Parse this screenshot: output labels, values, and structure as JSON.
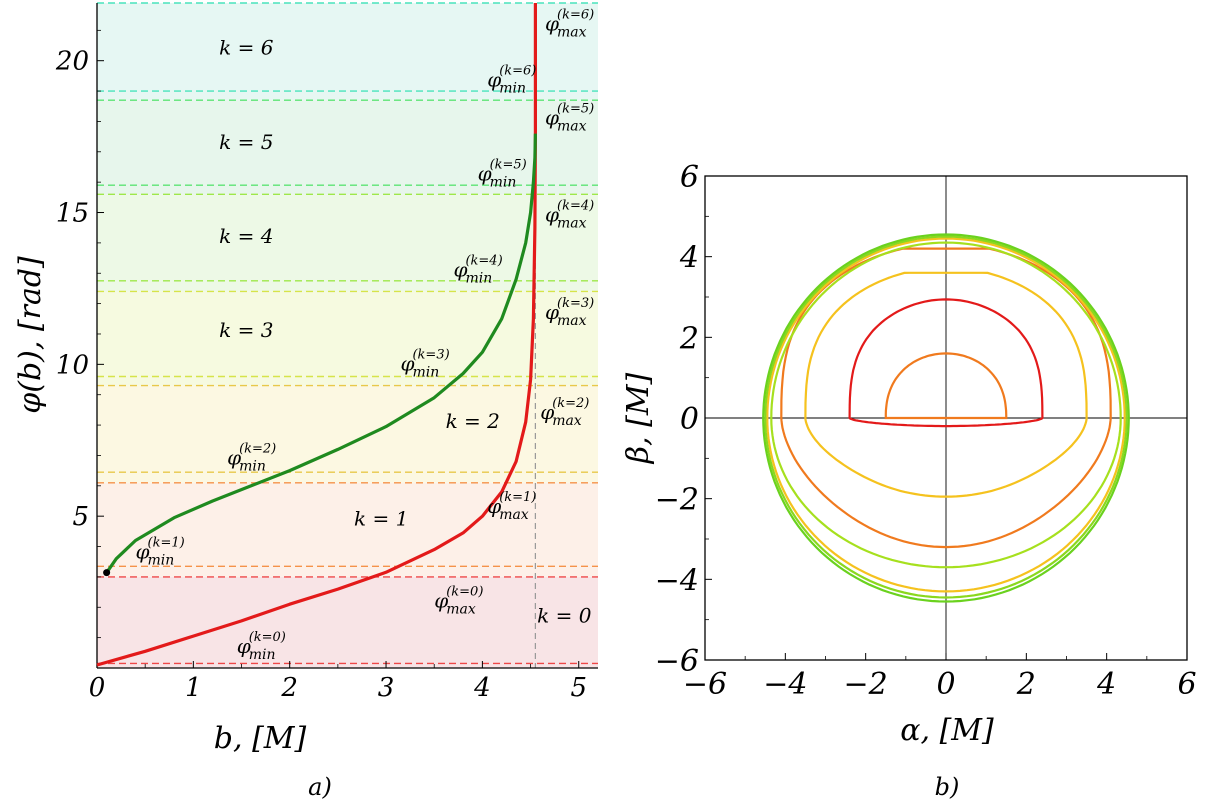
{
  "chart_data": [
    {
      "type": "line",
      "panel_label": "a)",
      "xlabel": "b, [M]",
      "ylabel": "φ(b), [rad]",
      "xlim": [
        0,
        5.2
      ],
      "ylim": [
        0,
        21.9
      ],
      "xticks": [
        0,
        1,
        2,
        3,
        4,
        5
      ],
      "yticks": [
        5,
        10,
        15,
        20
      ],
      "critical_b": 4.55,
      "bands": [
        {
          "k": 0,
          "label": "k = 0",
          "from": 0,
          "to": 3.0,
          "color": "#f8e4e6",
          "line_color": "#ee4848"
        },
        {
          "k": 1,
          "label": "k = 1",
          "from": 3.0,
          "to": 6.1,
          "color": "#fdf0e8",
          "line_color": "#f5924a"
        },
        {
          "k": 2,
          "label": "k = 2",
          "from": 6.1,
          "to": 9.3,
          "color": "#fcf8e2",
          "line_color": "#e8c84a"
        },
        {
          "k": 3,
          "label": "k = 3",
          "from": 9.3,
          "to": 12.4,
          "color": "#f6fae0",
          "line_color": "#d6e44a"
        },
        {
          "k": 4,
          "label": "k = 4",
          "from": 12.4,
          "to": 15.6,
          "color": "#edf9e6",
          "line_color": "#9ee84a"
        },
        {
          "k": 5,
          "label": "k = 5",
          "from": 15.6,
          "to": 18.7,
          "color": "#e7f6ec",
          "line_color": "#5ce474"
        },
        {
          "k": 6,
          "label": "k = 6",
          "from": 18.7,
          "to": 21.9,
          "color": "#e6f7f3",
          "line_color": "#48e4bc"
        }
      ],
      "min_lines": [
        0.15,
        3.35,
        6.45,
        9.6,
        12.75,
        15.9,
        19.0
      ],
      "min_line_colors": [
        "#ee4848",
        "#f5924a",
        "#e8c84a",
        "#d6e44a",
        "#9ee84a",
        "#5ce474",
        "#48e4bc"
      ],
      "annotations": [
        {
          "name": "phi-min-k0",
          "base": "φ",
          "sup": "(k=0)",
          "sub": "min",
          "b": 1.45,
          "phi": 0.5
        },
        {
          "name": "phi-max-k0",
          "base": "φ",
          "sup": "(k=0)",
          "sub": "max",
          "b": 3.5,
          "phi": 2.0
        },
        {
          "name": "phi-min-k1",
          "base": "φ",
          "sup": "(k=1)",
          "sub": "min",
          "b": 0.4,
          "phi": 3.6
        },
        {
          "name": "phi-max-k1",
          "base": "φ",
          "sup": "(k=1)",
          "sub": "max",
          "b": 4.05,
          "phi": 5.1
        },
        {
          "name": "phi-min-k2",
          "base": "φ",
          "sup": "(k=2)",
          "sub": "min",
          "b": 1.35,
          "phi": 6.7
        },
        {
          "name": "phi-max-k2",
          "base": "φ",
          "sup": "(k=2)",
          "sub": "max",
          "b": 4.6,
          "phi": 8.2
        },
        {
          "name": "phi-min-k3",
          "base": "φ",
          "sup": "(k=3)",
          "sub": "min",
          "b": 3.15,
          "phi": 9.8
        },
        {
          "name": "phi-max-k3",
          "base": "φ",
          "sup": "(k=3)",
          "sub": "max",
          "b": 4.65,
          "phi": 11.5
        },
        {
          "name": "phi-min-k4",
          "base": "φ",
          "sup": "(k=4)",
          "sub": "min",
          "b": 3.7,
          "phi": 12.9
        },
        {
          "name": "phi-max-k4",
          "base": "φ",
          "sup": "(k=4)",
          "sub": "max",
          "b": 4.65,
          "phi": 14.7
        },
        {
          "name": "phi-min-k5",
          "base": "φ",
          "sup": "(k=5)",
          "sub": "min",
          "b": 3.95,
          "phi": 16.05
        },
        {
          "name": "phi-max-k5",
          "base": "φ",
          "sup": "(k=5)",
          "sub": "max",
          "b": 4.65,
          "phi": 17.9
        },
        {
          "name": "phi-min-k6",
          "base": "φ",
          "sup": "(k=6)",
          "sub": "min",
          "b": 4.05,
          "phi": 19.15
        },
        {
          "name": "phi-max-k6",
          "base": "φ",
          "sup": "(k=6)",
          "sub": "max",
          "b": 4.65,
          "phi": 21.0
        }
      ],
      "k_label_positions": [
        {
          "k": 0,
          "b": 4.85,
          "phi": 1.5
        },
        {
          "k": 1,
          "b": 2.95,
          "phi": 4.7
        },
        {
          "k": 2,
          "b": 3.9,
          "phi": 7.9
        },
        {
          "k": 3,
          "b": 1.55,
          "phi": 10.9
        },
        {
          "k": 4,
          "b": 1.55,
          "phi": 14.0
        },
        {
          "k": 5,
          "b": 1.55,
          "phi": 17.1
        },
        {
          "k": 6,
          "b": 1.55,
          "phi": 20.2
        }
      ],
      "series": [
        {
          "color": "#e31a1a",
          "x": [
            0.0,
            0.5,
            1.0,
            1.5,
            2.0,
            2.5,
            3.0,
            3.5,
            3.8,
            4.0,
            4.2,
            4.35,
            4.45,
            4.5,
            4.53,
            4.545,
            4.55,
            4.55
          ],
          "y": [
            0.1,
            0.55,
            1.05,
            1.55,
            2.1,
            2.6,
            3.15,
            3.9,
            4.45,
            5.0,
            5.8,
            6.8,
            8.1,
            9.5,
            11.5,
            14.5,
            17.5,
            21.9
          ]
        },
        {
          "color": "#1f8a1f",
          "x": [
            0.1,
            0.2,
            0.4,
            0.8,
            1.2,
            1.6,
            2.0,
            2.5,
            3.0,
            3.5,
            3.8,
            4.0,
            4.2,
            4.35,
            4.45,
            4.5,
            4.53,
            4.545,
            4.55
          ],
          "y": [
            3.14,
            3.6,
            4.2,
            4.95,
            5.5,
            6.0,
            6.5,
            7.2,
            7.95,
            8.9,
            9.7,
            10.4,
            11.5,
            12.8,
            14.0,
            15.0,
            16.0,
            16.8,
            17.6
          ]
        }
      ],
      "point": {
        "b": 0.1,
        "phi": 3.14
      }
    },
    {
      "type": "line",
      "panel_label": "b)",
      "xlabel": "α, [M]",
      "ylabel": "β, [M]",
      "xlim": [
        -6,
        6
      ],
      "ylim": [
        -6,
        6
      ],
      "xticks": [
        -6,
        -4,
        -2,
        0,
        2,
        4,
        6
      ],
      "yticks": [
        -6,
        -4,
        -2,
        0,
        2,
        4,
        6
      ],
      "series": [
        {
          "color": "#f07a1e",
          "shape": "cap",
          "w": 1.5,
          "top": 1.65,
          "bot": 0.0
        },
        {
          "color": "#e31a1a",
          "shape": "bulge",
          "R": 2.4,
          "top": 3.0,
          "bot": -0.2,
          "waist": 0.0
        },
        {
          "color": "#f5c21e",
          "shape": "bulge",
          "R": 3.5,
          "top": 3.6,
          "bot": -1.95,
          "waist": 0.6
        },
        {
          "color": "#f07a1e",
          "shape": "bulge",
          "R": 4.1,
          "top": 4.2,
          "bot": -3.2,
          "waist": 0.25
        },
        {
          "color": "#a6e01e",
          "shape": "circle",
          "R": 4.35,
          "top": 4.35,
          "bot": -3.7
        },
        {
          "color": "#f5c21e",
          "shape": "circle",
          "R": 4.45,
          "top": 4.45,
          "bot": -4.3
        },
        {
          "color": "#8ad81e",
          "shape": "circle",
          "R": 4.5,
          "top": 4.5,
          "bot": -4.45
        },
        {
          "color": "#6ad21e",
          "shape": "circle",
          "R": 4.55,
          "top": 4.55,
          "bot": -4.55
        }
      ]
    }
  ]
}
